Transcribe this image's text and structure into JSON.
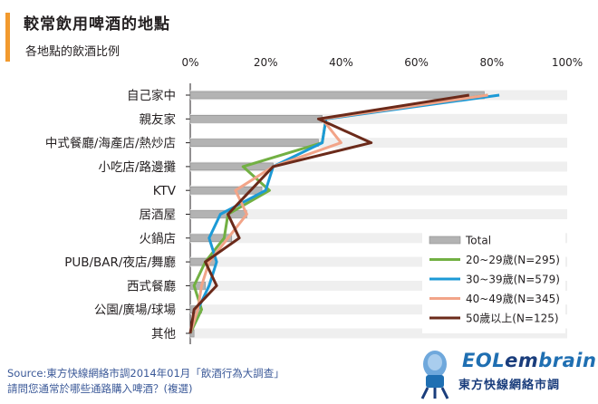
{
  "header": {
    "title": "較常飲用啤酒的地點",
    "subtitle": "各地點的飲酒比例"
  },
  "chart_data": {
    "type": "bar",
    "categories": [
      "自己家中",
      "親友家",
      "中式餐廳/海產店/熱炒店",
      "小吃店/路邊攤",
      "KTV",
      "居酒屋",
      "火鍋店",
      "PUB/BAR/夜店/舞廳",
      "西式餐廳",
      "公園/廣場/球場",
      "其他"
    ],
    "xlim": [
      0,
      100
    ],
    "x_ticks": [
      "0%",
      "20%",
      "40%",
      "60%",
      "80%",
      "100%"
    ],
    "grid": false,
    "legend_position": "bottom-right",
    "series": [
      {
        "name": "Total",
        "type": "bar",
        "color": "#b3b3b3",
        "values": [
          78,
          35,
          34,
          22,
          19,
          15,
          11,
          7,
          4,
          3,
          1
        ]
      },
      {
        "name": "20~29歲(N=295)",
        "type": "line",
        "color": "#72b043",
        "values": [
          79,
          36,
          35,
          14,
          21,
          10,
          9,
          4,
          1,
          3,
          0
        ]
      },
      {
        "name": "30~39歲(N=579)",
        "type": "line",
        "color": "#1c9ad6",
        "values": [
          82,
          36,
          35,
          22,
          20,
          8,
          5,
          7,
          5,
          2,
          0
        ]
      },
      {
        "name": "40~49歲(N=345)",
        "type": "line",
        "color": "#f2a488",
        "values": [
          79,
          35,
          40,
          22,
          12,
          15,
          10,
          5,
          3,
          2,
          0
        ]
      },
      {
        "name": "50歲以上(N=125)",
        "type": "line",
        "color": "#6b2a1a",
        "values": [
          74,
          34,
          48,
          22,
          16,
          10,
          13,
          4,
          7,
          1,
          0
        ]
      }
    ]
  },
  "footer": {
    "source_line": "Source:東方快線網絡市調2014年01月「飲酒行為大調查」",
    "question_line": "請問您通常於哪些通路購入啤酒？(複選)"
  },
  "logo": {
    "name_left": "EOL",
    "name_mid": "em",
    "name_right": "brain",
    "sub": "東方快線網絡市調",
    "accent": "#1f6fb2"
  }
}
